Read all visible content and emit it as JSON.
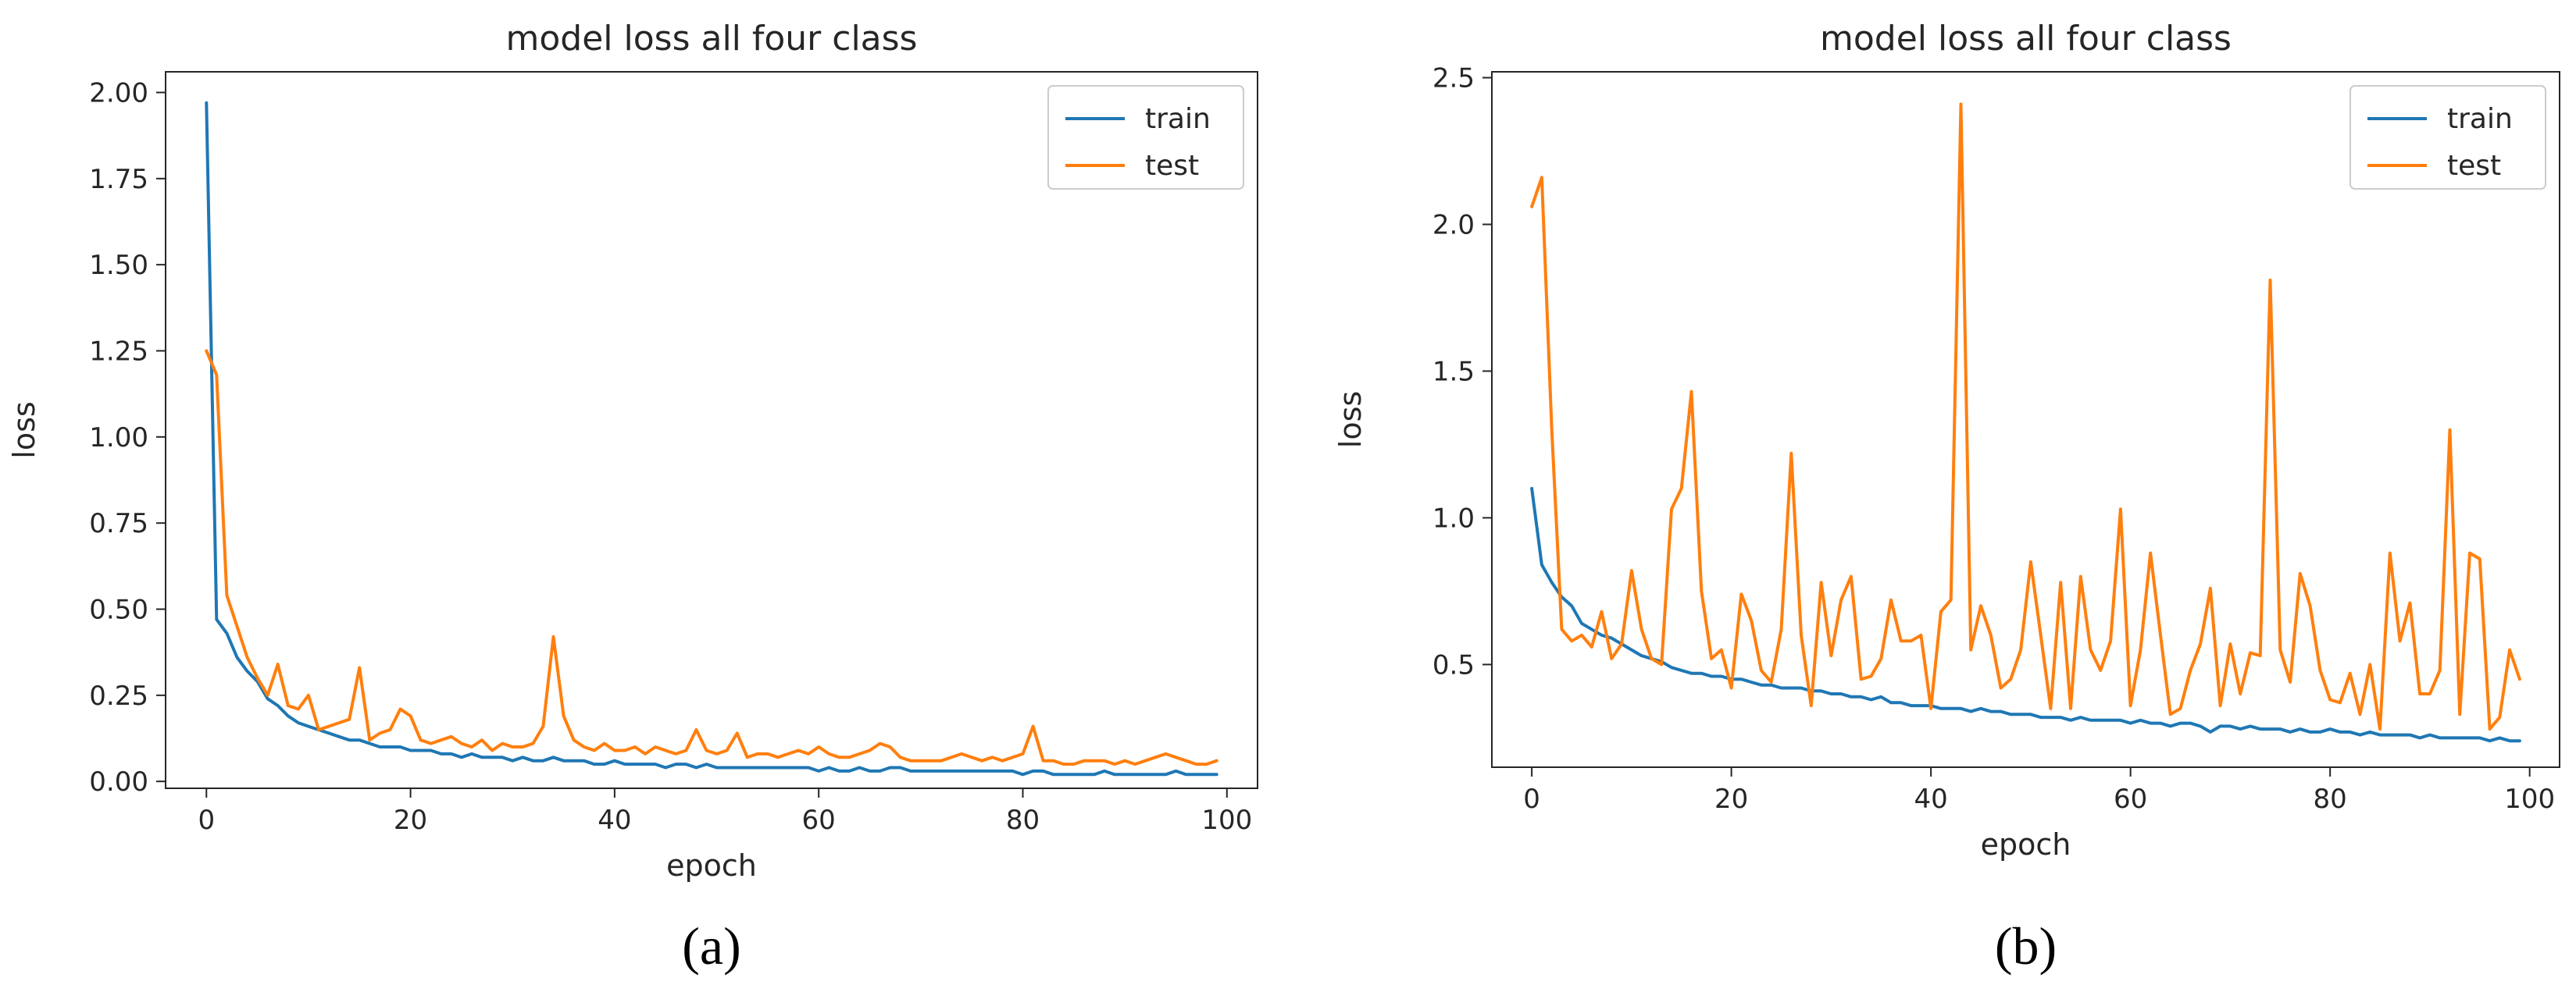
{
  "chart_data": [
    {
      "type": "line",
      "title": "model loss all four class",
      "xlabel": "epoch",
      "ylabel": "loss",
      "panel_label": "(a)",
      "xlim": [
        -4,
        103
      ],
      "ylim": [
        -0.02,
        2.06
      ],
      "xticks": [
        0,
        20,
        40,
        60,
        80,
        100
      ],
      "yticks": [
        0.0,
        0.25,
        0.5,
        0.75,
        1.0,
        1.25,
        1.5,
        1.75,
        2.0
      ],
      "ytick_labels": [
        "0.00",
        "0.25",
        "0.50",
        "0.75",
        "1.00",
        "1.25",
        "1.50",
        "1.75",
        "2.00"
      ],
      "xtick_labels": [
        "0",
        "20",
        "40",
        "60",
        "80",
        "100"
      ],
      "legend": "top-right",
      "grid": false,
      "series": [
        {
          "name": "train",
          "color": "#1f77b4",
          "values": [
            1.97,
            0.47,
            0.43,
            0.36,
            0.32,
            0.29,
            0.24,
            0.22,
            0.19,
            0.17,
            0.16,
            0.15,
            0.14,
            0.13,
            0.12,
            0.12,
            0.11,
            0.1,
            0.1,
            0.1,
            0.09,
            0.09,
            0.09,
            0.08,
            0.08,
            0.07,
            0.08,
            0.07,
            0.07,
            0.07,
            0.06,
            0.07,
            0.06,
            0.06,
            0.07,
            0.06,
            0.06,
            0.06,
            0.05,
            0.05,
            0.06,
            0.05,
            0.05,
            0.05,
            0.05,
            0.04,
            0.05,
            0.05,
            0.04,
            0.05,
            0.04,
            0.04,
            0.04,
            0.04,
            0.04,
            0.04,
            0.04,
            0.04,
            0.04,
            0.04,
            0.03,
            0.04,
            0.03,
            0.03,
            0.04,
            0.03,
            0.03,
            0.04,
            0.04,
            0.03,
            0.03,
            0.03,
            0.03,
            0.03,
            0.03,
            0.03,
            0.03,
            0.03,
            0.03,
            0.03,
            0.02,
            0.03,
            0.03,
            0.02,
            0.02,
            0.02,
            0.02,
            0.02,
            0.03,
            0.02,
            0.02,
            0.02,
            0.02,
            0.02,
            0.02,
            0.03,
            0.02,
            0.02,
            0.02,
            0.02
          ]
        },
        {
          "name": "test",
          "color": "#ff7f0e",
          "values": [
            1.25,
            1.18,
            0.54,
            0.45,
            0.36,
            0.3,
            0.25,
            0.34,
            0.22,
            0.21,
            0.25,
            0.15,
            0.16,
            0.17,
            0.18,
            0.33,
            0.12,
            0.14,
            0.15,
            0.21,
            0.19,
            0.12,
            0.11,
            0.12,
            0.13,
            0.11,
            0.1,
            0.12,
            0.09,
            0.11,
            0.1,
            0.1,
            0.11,
            0.16,
            0.42,
            0.19,
            0.12,
            0.1,
            0.09,
            0.11,
            0.09,
            0.09,
            0.1,
            0.08,
            0.1,
            0.09,
            0.08,
            0.09,
            0.15,
            0.09,
            0.08,
            0.09,
            0.14,
            0.07,
            0.08,
            0.08,
            0.07,
            0.08,
            0.09,
            0.08,
            0.1,
            0.08,
            0.07,
            0.07,
            0.08,
            0.09,
            0.11,
            0.1,
            0.07,
            0.06,
            0.06,
            0.06,
            0.06,
            0.07,
            0.08,
            0.07,
            0.06,
            0.07,
            0.06,
            0.07,
            0.08,
            0.16,
            0.06,
            0.06,
            0.05,
            0.05,
            0.06,
            0.06,
            0.06,
            0.05,
            0.06,
            0.05,
            0.06,
            0.07,
            0.08,
            0.07,
            0.06,
            0.05,
            0.05,
            0.06
          ]
        }
      ]
    },
    {
      "type": "line",
      "title": "model loss all four class",
      "xlabel": "epoch",
      "ylabel": "loss",
      "panel_label": "(b)",
      "xlim": [
        -4,
        103
      ],
      "ylim": [
        0.15,
        2.52
      ],
      "xticks": [
        0,
        20,
        40,
        60,
        80,
        100
      ],
      "yticks": [
        0.5,
        1.0,
        1.5,
        2.0,
        2.5
      ],
      "ytick_labels": [
        "0.5",
        "1.0",
        "1.5",
        "2.0",
        "2.5"
      ],
      "xtick_labels": [
        "0",
        "20",
        "40",
        "60",
        "80",
        "100"
      ],
      "legend": "top-right",
      "grid": false,
      "series": [
        {
          "name": "train",
          "color": "#1f77b4",
          "values": [
            1.1,
            0.84,
            0.78,
            0.73,
            0.7,
            0.64,
            0.62,
            0.6,
            0.59,
            0.57,
            0.55,
            0.53,
            0.52,
            0.51,
            0.49,
            0.48,
            0.47,
            0.47,
            0.46,
            0.46,
            0.45,
            0.45,
            0.44,
            0.43,
            0.43,
            0.42,
            0.42,
            0.42,
            0.41,
            0.41,
            0.4,
            0.4,
            0.39,
            0.39,
            0.38,
            0.39,
            0.37,
            0.37,
            0.36,
            0.36,
            0.36,
            0.35,
            0.35,
            0.35,
            0.34,
            0.35,
            0.34,
            0.34,
            0.33,
            0.33,
            0.33,
            0.32,
            0.32,
            0.32,
            0.31,
            0.32,
            0.31,
            0.31,
            0.31,
            0.31,
            0.3,
            0.31,
            0.3,
            0.3,
            0.29,
            0.3,
            0.3,
            0.29,
            0.27,
            0.29,
            0.29,
            0.28,
            0.29,
            0.28,
            0.28,
            0.28,
            0.27,
            0.28,
            0.27,
            0.27,
            0.28,
            0.27,
            0.27,
            0.26,
            0.27,
            0.26,
            0.26,
            0.26,
            0.26,
            0.25,
            0.26,
            0.25,
            0.25,
            0.25,
            0.25,
            0.25,
            0.24,
            0.25,
            0.24,
            0.24
          ]
        },
        {
          "name": "test",
          "color": "#ff7f0e",
          "values": [
            2.06,
            2.16,
            1.3,
            0.62,
            0.58,
            0.6,
            0.56,
            0.68,
            0.52,
            0.57,
            0.82,
            0.62,
            0.52,
            0.5,
            1.03,
            1.1,
            1.43,
            0.75,
            0.52,
            0.55,
            0.42,
            0.74,
            0.65,
            0.48,
            0.44,
            0.62,
            1.22,
            0.6,
            0.36,
            0.78,
            0.53,
            0.72,
            0.8,
            0.45,
            0.46,
            0.52,
            0.72,
            0.58,
            0.58,
            0.6,
            0.35,
            0.68,
            0.72,
            2.41,
            0.55,
            0.7,
            0.6,
            0.42,
            0.45,
            0.55,
            0.85,
            0.6,
            0.35,
            0.78,
            0.35,
            0.8,
            0.55,
            0.48,
            0.58,
            1.03,
            0.36,
            0.55,
            0.88,
            0.6,
            0.33,
            0.35,
            0.48,
            0.57,
            0.76,
            0.36,
            0.57,
            0.4,
            0.54,
            0.53,
            1.81,
            0.55,
            0.44,
            0.81,
            0.7,
            0.48,
            0.38,
            0.37,
            0.47,
            0.33,
            0.5,
            0.28,
            0.88,
            0.58,
            0.71,
            0.4,
            0.4,
            0.48,
            1.3,
            0.33,
            0.88,
            0.86,
            0.28,
            0.32,
            0.55,
            0.45
          ]
        }
      ]
    }
  ]
}
